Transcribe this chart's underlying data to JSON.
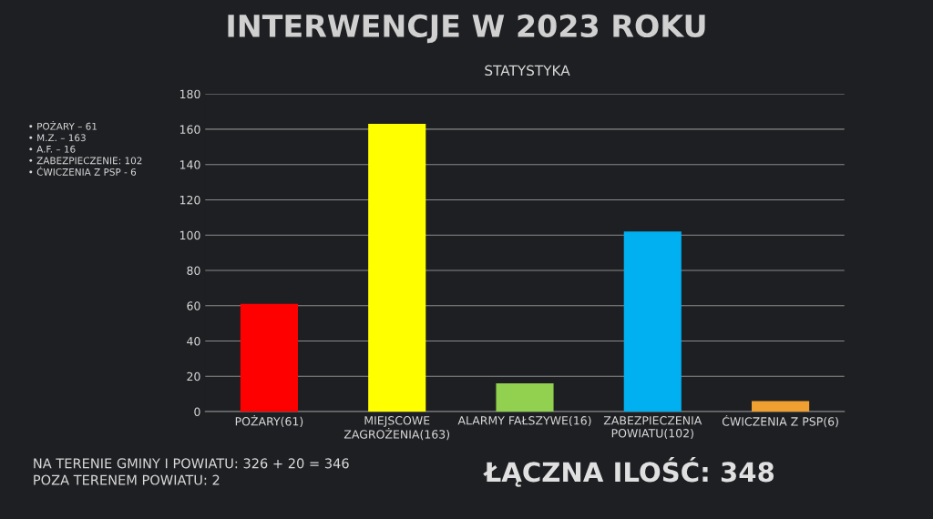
{
  "chart_data": {
    "type": "bar",
    "title": "INTERWENCJE W 2023 ROKU",
    "subtitle": "STATYSTYKA",
    "categories": [
      "POŻARY(61)",
      "MIEJSCOWE\nZAGROŻENIA(163)",
      "ALARMY FAŁSZYWE(16)",
      "ZABEZPIECZENIA\nPOWIATU(102)",
      "ĆWICZENIA Z PSP(6)"
    ],
    "values": [
      61,
      163,
      16,
      102,
      6
    ],
    "colors": [
      "#ff0000",
      "#ffff00",
      "#92d050",
      "#00b0f0",
      "#f0a030"
    ],
    "ylim": [
      0,
      180
    ],
    "yticks": [
      0,
      20,
      40,
      60,
      80,
      100,
      120,
      140,
      160,
      180
    ],
    "grid": "y",
    "legend": false,
    "annotations": [
      "• POŻARY – 61",
      "• M.Z. – 163",
      "• A.F. – 16",
      "• ZABEZPIECZENIE: 102",
      "• ĆWICZENIA Z PSP - 6",
      "NA TERENIE GMINY I POWIATU: 326 + 20 = 346",
      "POZA TERENEM POWIATU: 2",
      "ŁĄCZNA ILOŚĆ: 348"
    ]
  }
}
